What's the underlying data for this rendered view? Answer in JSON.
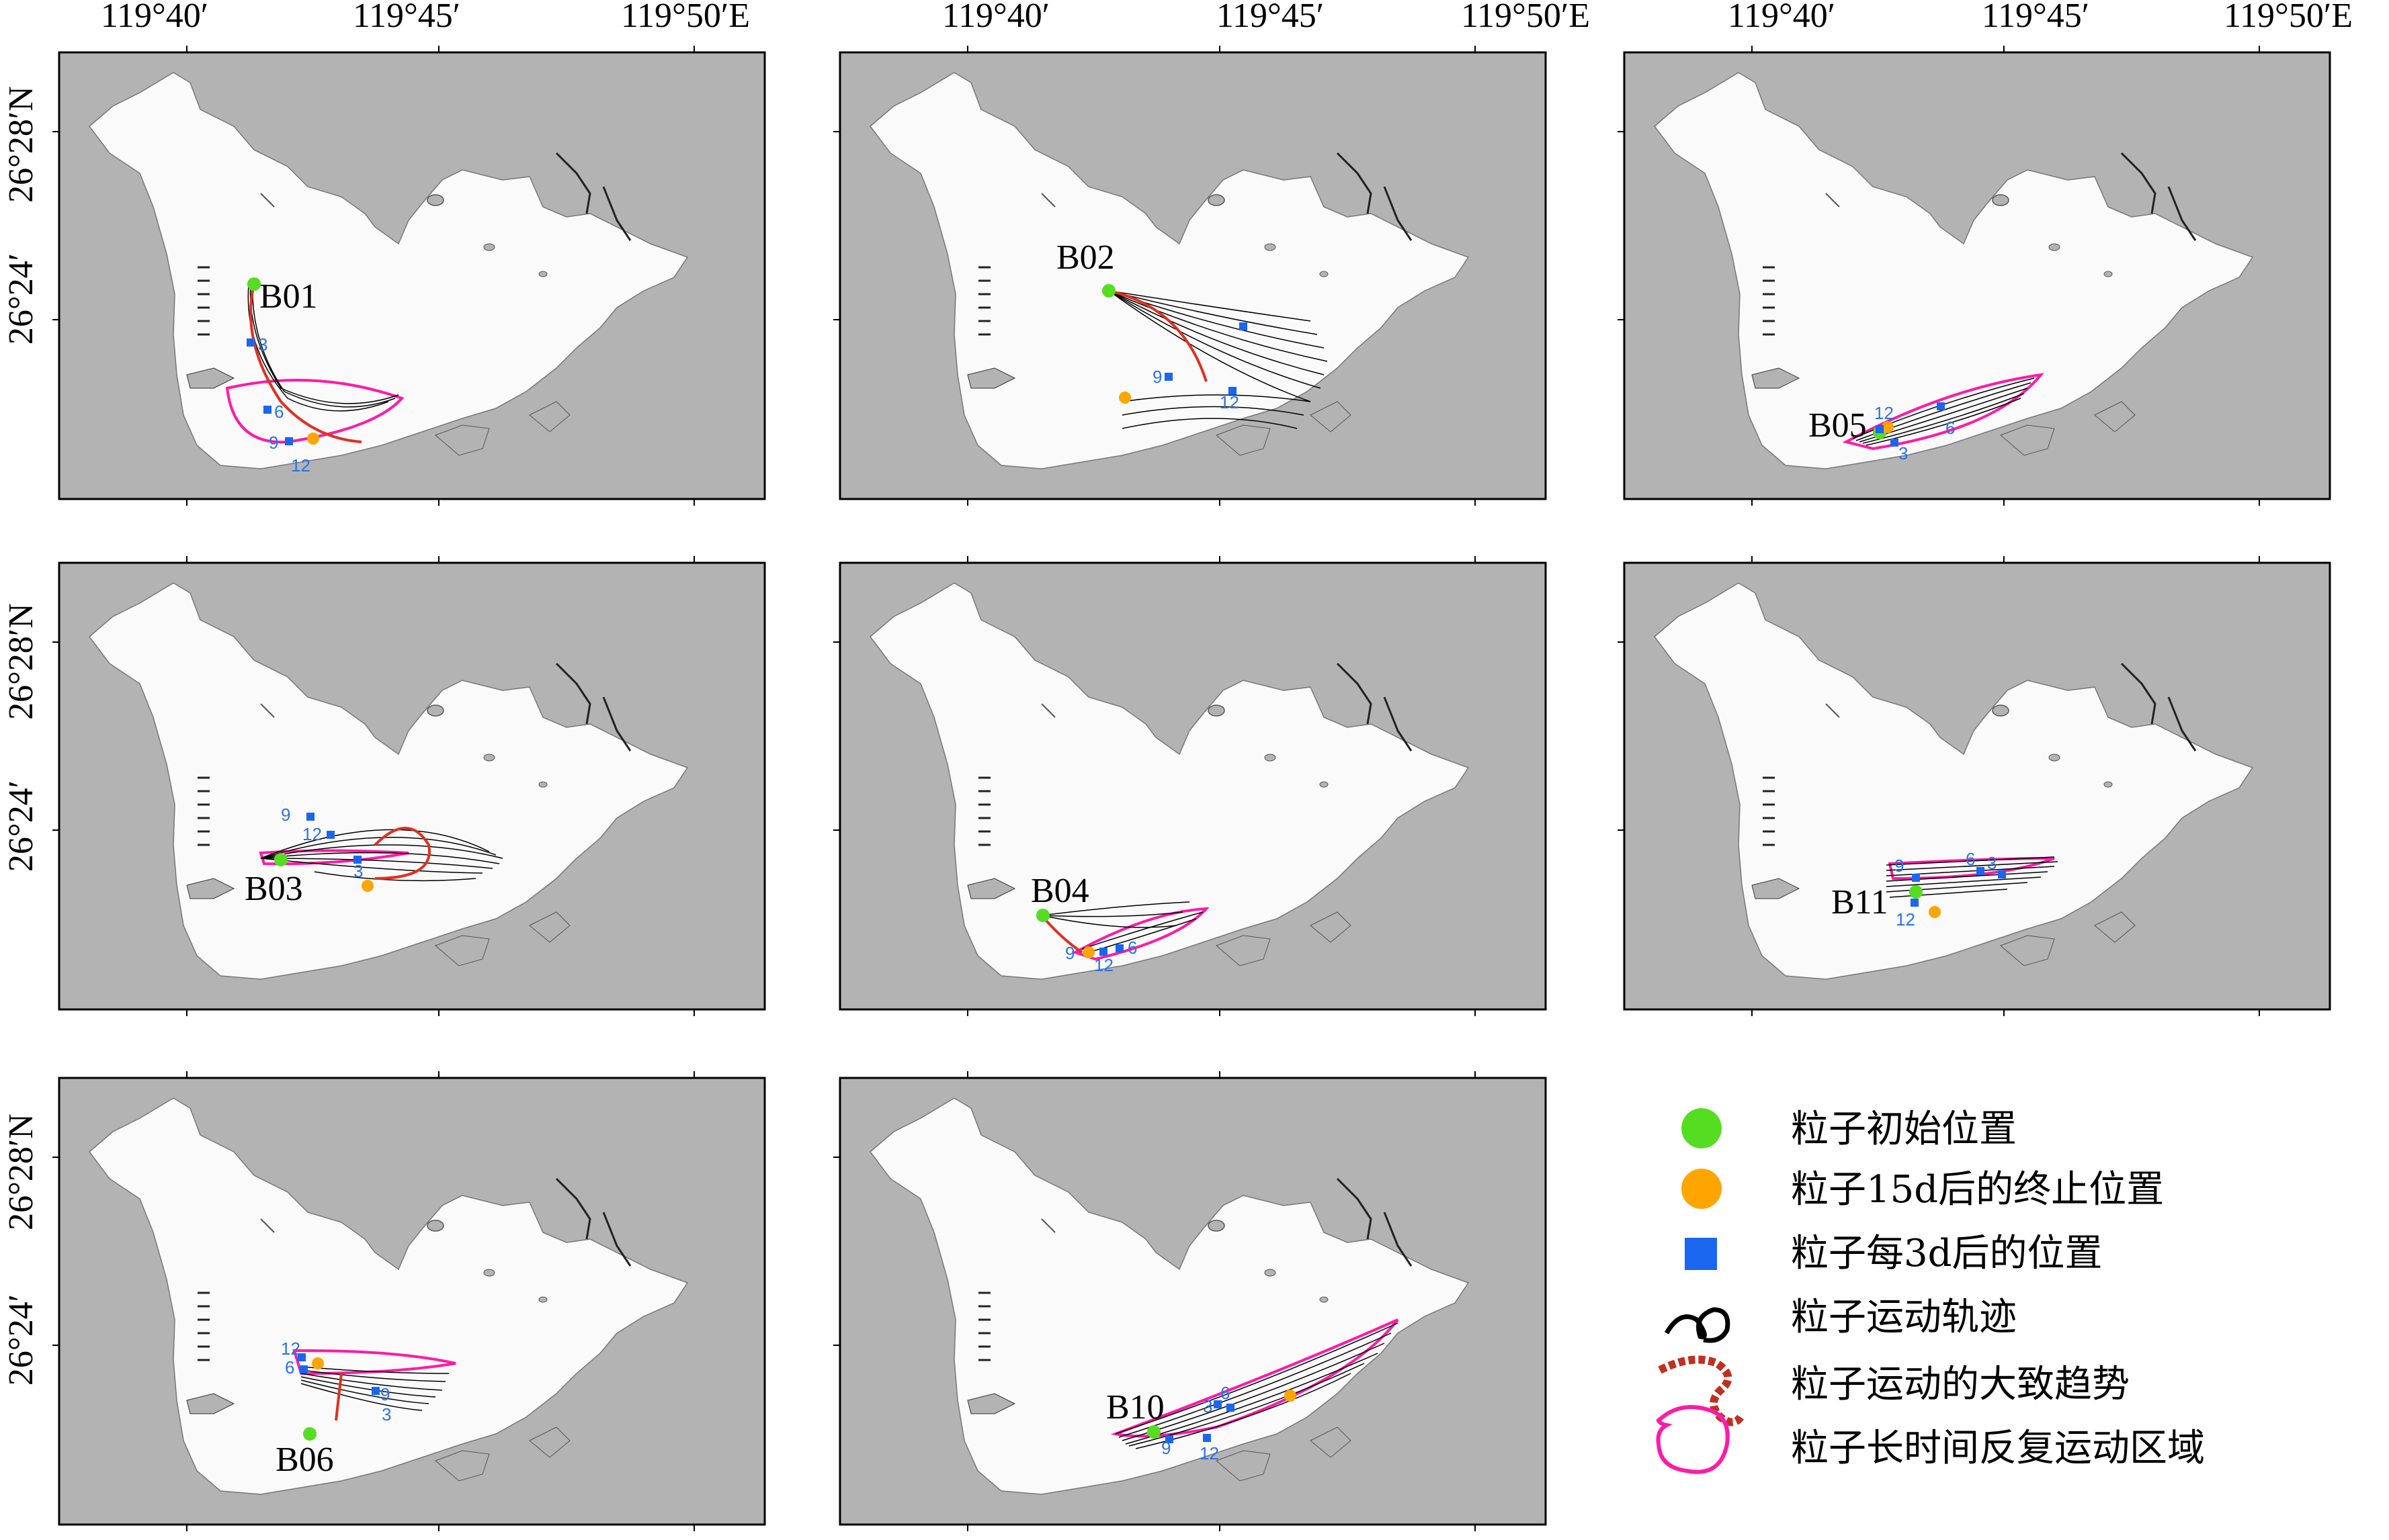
{
  "axes": {
    "lon_ticks": [
      "119°40′",
      "119°45′",
      "119°50′E"
    ],
    "lat_ticks": [
      "26°28′N",
      "26°24′"
    ]
  },
  "panels": [
    {
      "station": "B01",
      "steps": [
        "3",
        "6",
        "9",
        "12"
      ]
    },
    {
      "station": "B02",
      "steps": [
        "9",
        "12"
      ]
    },
    {
      "station": "B05",
      "steps": [
        "12",
        "3",
        "6"
      ]
    },
    {
      "station": "B03",
      "steps": [
        "9",
        "12",
        "3"
      ]
    },
    {
      "station": "B04",
      "steps": [
        "9",
        "12",
        "6"
      ]
    },
    {
      "station": "B11",
      "steps": [
        "9",
        "6",
        "3",
        "12"
      ]
    },
    {
      "station": "B06",
      "steps": [
        "12",
        "6",
        "9",
        "3"
      ]
    },
    {
      "station": "B10",
      "steps": [
        "3",
        "6",
        "9",
        "12"
      ]
    }
  ],
  "legend": [
    {
      "label": "粒子初始位置",
      "icon": "green-dot-icon"
    },
    {
      "label": "粒子15d后的终止位置",
      "icon": "orange-dot-icon"
    },
    {
      "label": "粒子每3d后的位置",
      "icon": "blue-square-icon"
    },
    {
      "label": "粒子运动轨迹",
      "icon": "black-squiggle-icon"
    },
    {
      "label": "粒子运动的大致趋势",
      "icon": "red-dashed-squiggle-icon"
    },
    {
      "label": "粒子长时间反复运动区域",
      "icon": "magenta-loop-icon"
    }
  ],
  "colors": {
    "land": "#b3b3b3",
    "water": "#fafafa",
    "initial": "#55dd22",
    "final": "#ffa500",
    "step": "#1a66ee",
    "trajectory": "#000000",
    "trend": "#e03020",
    "repeat_zone": "#ff1aa8"
  }
}
